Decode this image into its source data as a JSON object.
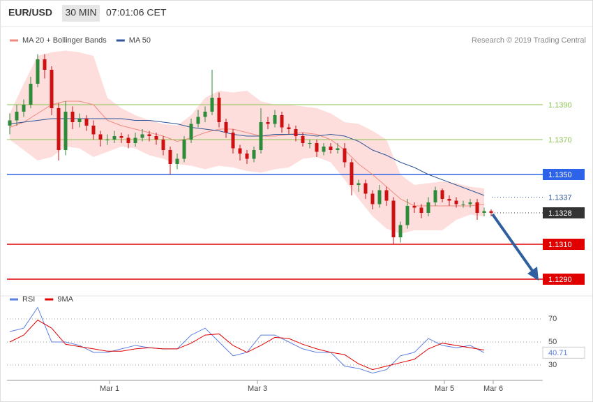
{
  "chart_data": {
    "type": "candlestick",
    "title": "EUR/USD",
    "timeframe": "30 MIN",
    "time": "07:01:06 CET",
    "source": "Research © 2019 Trading Central",
    "xlim": [
      -0.4,
      76.4
    ],
    "ylim": [
      1.1282,
      1.1422
    ],
    "xticks": [
      {
        "value": 14.3,
        "label": "Mar 1"
      },
      {
        "value": 35.5,
        "label": "Mar 3"
      },
      {
        "value": 62.3,
        "label": "Mar 5"
      },
      {
        "value": 69.3,
        "label": "Mar 6"
      }
    ],
    "up_color": "#2e8b3a",
    "down_color": "#d01010",
    "open": [
      1.1378,
      1.1381,
      1.1386,
      1.139,
      1.1402,
      1.1416,
      1.141,
      1.1388,
      1.1364,
      1.1386,
      1.138,
      1.1382,
      1.1378,
      1.1373,
      1.137,
      1.137,
      1.1372,
      1.1371,
      1.1368,
      1.1371,
      1.1373,
      1.1372,
      1.137,
      1.1364,
      1.1356,
      1.1359,
      1.137,
      1.1379,
      1.1383,
      1.1386,
      1.1394,
      1.138,
      1.1374,
      1.1365,
      1.1362,
      1.1359,
      1.1364,
      1.138,
      1.1379,
      1.1384,
      1.1377,
      1.1376,
      1.1372,
      1.1368,
      1.1368,
      1.1363,
      1.1366,
      1.1364,
      1.1365,
      1.1357,
      1.1344,
      1.1345,
      1.1339,
      1.1333,
      1.1341,
      1.1335,
      1.1314,
      1.1321,
      1.1332,
      1.1331,
      1.1328,
      1.1334,
      1.1341,
      1.1336,
      1.1335,
      1.1333,
      1.1333,
      1.1334,
      1.1328,
      1.1329
    ],
    "high": [
      1.1385,
      1.139,
      1.1393,
      1.1406,
      1.1419,
      1.1419,
      1.1412,
      1.1391,
      1.1392,
      1.1389,
      1.1385,
      1.1384,
      1.1381,
      1.1375,
      1.1373,
      1.1375,
      1.1374,
      1.1373,
      1.1374,
      1.1376,
      1.1375,
      1.1374,
      1.1372,
      1.1366,
      1.1362,
      1.1372,
      1.1382,
      1.1387,
      1.1389,
      1.141,
      1.1397,
      1.1382,
      1.1376,
      1.1367,
      1.1364,
      1.1366,
      1.1388,
      1.1383,
      1.1387,
      1.1386,
      1.1379,
      1.1378,
      1.1374,
      1.137,
      1.137,
      1.1368,
      1.1368,
      1.1368,
      1.1368,
      1.1359,
      1.1347,
      1.1347,
      1.1341,
      1.1344,
      1.1343,
      1.1337,
      1.1323,
      1.1336,
      1.1334,
      1.1333,
      1.1337,
      1.1343,
      1.1342,
      1.1338,
      1.1337,
      1.1335,
      1.1336,
      1.1336,
      1.1331,
      1.133
    ],
    "low": [
      1.1373,
      1.1378,
      1.1383,
      1.1388,
      1.14,
      1.1405,
      1.1384,
      1.1358,
      1.1361,
      1.1376,
      1.1377,
      1.1375,
      1.137,
      1.1366,
      1.1367,
      1.1368,
      1.1368,
      1.1365,
      1.1366,
      1.1369,
      1.1369,
      1.1367,
      1.1361,
      1.135,
      1.1353,
      1.1357,
      1.1368,
      1.1377,
      1.138,
      1.1384,
      1.1377,
      1.1371,
      1.1362,
      1.1358,
      1.1356,
      1.1357,
      1.1362,
      1.1376,
      1.1377,
      1.1374,
      1.1373,
      1.1369,
      1.1366,
      1.1365,
      1.136,
      1.1361,
      1.1362,
      1.1362,
      1.1354,
      1.1338,
      1.134,
      1.1336,
      1.133,
      1.1331,
      1.1332,
      1.131,
      1.1311,
      1.1319,
      1.1328,
      1.1325,
      1.1326,
      1.1332,
      1.1334,
      1.1332,
      1.1331,
      1.1331,
      1.1331,
      1.1324,
      1.1326,
      1.1326
    ],
    "close": [
      1.1381,
      1.1386,
      1.139,
      1.1402,
      1.1416,
      1.141,
      1.1388,
      1.1364,
      1.1386,
      1.138,
      1.1382,
      1.1378,
      1.1373,
      1.137,
      1.137,
      1.1372,
      1.1371,
      1.1368,
      1.1371,
      1.1373,
      1.1372,
      1.137,
      1.1364,
      1.1356,
      1.1359,
      1.137,
      1.1379,
      1.1383,
      1.1386,
      1.1394,
      1.138,
      1.1374,
      1.1365,
      1.1362,
      1.1359,
      1.1364,
      1.138,
      1.1379,
      1.1384,
      1.1377,
      1.1376,
      1.1372,
      1.1368,
      1.1368,
      1.1363,
      1.1366,
      1.1364,
      1.1365,
      1.1357,
      1.1344,
      1.1345,
      1.1339,
      1.1333,
      1.1341,
      1.1335,
      1.1314,
      1.1321,
      1.1332,
      1.1331,
      1.1328,
      1.1334,
      1.1341,
      1.1336,
      1.1335,
      1.1333,
      1.1333,
      1.1334,
      1.1328,
      1.1329,
      1.1328
    ],
    "overlay_index": [
      0,
      2,
      4,
      6,
      8,
      10,
      12,
      14,
      16,
      18,
      20,
      22,
      24,
      26,
      28,
      30,
      32,
      34,
      36,
      38,
      40,
      42,
      44,
      46,
      48,
      50,
      52,
      54,
      56,
      58,
      60,
      62,
      64,
      66,
      68
    ],
    "series": [
      {
        "name": "MA 20 + Bollinger Bands",
        "color": "#f08a80",
        "band_color": "#fdd3d0",
        "values": [
          1.1377,
          1.138,
          1.1385,
          1.139,
          1.1392,
          1.1392,
          1.139,
          1.1381,
          1.1378,
          1.1376,
          1.1374,
          1.1372,
          1.1369,
          1.1371,
          1.1374,
          1.1376,
          1.1376,
          1.1374,
          1.1372,
          1.1372,
          1.1373,
          1.1374,
          1.1373,
          1.137,
          1.1364,
          1.1356,
          1.135,
          1.1343,
          1.1336,
          1.1332,
          1.1332,
          1.1332,
          1.1332,
          1.1332,
          1.1333
        ],
        "upper": [
          1.1385,
          1.1402,
          1.1418,
          1.142,
          1.1421,
          1.142,
          1.1418,
          1.1394,
          1.1388,
          1.1384,
          1.1381,
          1.1379,
          1.1378,
          1.1384,
          1.1394,
          1.1398,
          1.1397,
          1.1398,
          1.1392,
          1.139,
          1.139,
          1.1389,
          1.1388,
          1.1385,
          1.138,
          1.1379,
          1.1375,
          1.137,
          1.135,
          1.1344,
          1.1345,
          1.1346,
          1.1345,
          1.1343,
          1.1342
        ],
        "lower": [
          1.137,
          1.1364,
          1.1358,
          1.136,
          1.1366,
          1.1365,
          1.136,
          1.1363,
          1.1366,
          1.1365,
          1.1361,
          1.1359,
          1.1356,
          1.1355,
          1.1353,
          1.1355,
          1.1354,
          1.1352,
          1.1351,
          1.1353,
          1.1354,
          1.1359,
          1.136,
          1.1357,
          1.1347,
          1.1336,
          1.1326,
          1.1319,
          1.1316,
          1.1318,
          1.1318,
          1.1318,
          1.1324,
          1.1327,
          1.1326
        ]
      },
      {
        "name": "MA 50",
        "color": "#2f5597",
        "values": [
          1.1379,
          1.138,
          1.1381,
          1.1382,
          1.1382,
          1.1382,
          1.1382,
          1.1382,
          1.1382,
          1.1381,
          1.1381,
          1.138,
          1.1379,
          1.1377,
          1.1376,
          1.1375,
          1.1373,
          1.1372,
          1.1372,
          1.1373,
          1.1373,
          1.1373,
          1.1372,
          1.1373,
          1.1372,
          1.1369,
          1.1364,
          1.1361,
          1.1357,
          1.1354,
          1.135,
          1.1347,
          1.1344,
          1.1341,
          1.1338
        ]
      }
    ],
    "levels": [
      {
        "value": 1.139,
        "label": "1.1390",
        "color": "#8cc152",
        "line": "solid",
        "box": false
      },
      {
        "value": 1.137,
        "label": "1.1370",
        "color": "#8cc152",
        "line": "solid",
        "box": false
      },
      {
        "value": 1.135,
        "label": "1.1350",
        "color": "#2d63e8",
        "line": "solid",
        "box": true
      },
      {
        "value": 1.1337,
        "label": "1.1337",
        "color": "#2f5597",
        "line": "dotted",
        "box": false
      },
      {
        "value": 1.1328,
        "label": "1.1328",
        "color": "#333333",
        "line": "dotted",
        "box": true
      },
      {
        "value": 1.131,
        "label": "1.1310",
        "color": "#e00000",
        "line": "solid",
        "box": true
      },
      {
        "value": 1.129,
        "label": "1.1290",
        "color": "#e00000",
        "line": "solid",
        "box": true
      }
    ],
    "rsi": {
      "ylim": [
        20,
        86
      ],
      "yticks": [
        30,
        50,
        70
      ],
      "series": [
        {
          "name": "RSI",
          "color": "#5b7fe0",
          "values": [
            59,
            62,
            80,
            50,
            50,
            47,
            41,
            41,
            44,
            47,
            45,
            44,
            44,
            56,
            62,
            50,
            38,
            41,
            56,
            56,
            50,
            44,
            41,
            41,
            29,
            27,
            23,
            26,
            38,
            41,
            53,
            47,
            45,
            47,
            40.71
          ]
        },
        {
          "name": "9MA",
          "color": "#e00000",
          "values": [
            50,
            56,
            69,
            62,
            48,
            46,
            44,
            42,
            42,
            44,
            45,
            44,
            44,
            49,
            56,
            57,
            47,
            41,
            47,
            54,
            53,
            48,
            44,
            41,
            39,
            31,
            26,
            29,
            32,
            35,
            44,
            49,
            47,
            45,
            43
          ]
        }
      ]
    }
  }
}
